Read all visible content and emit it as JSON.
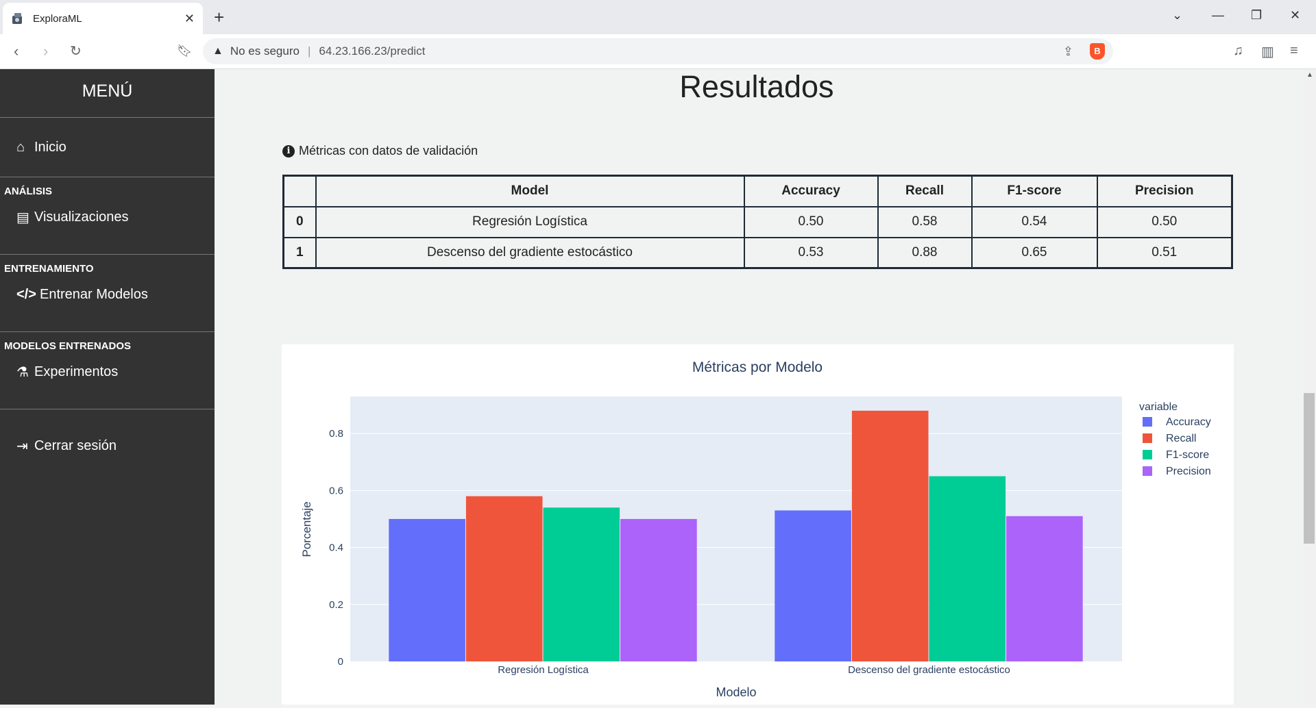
{
  "browser": {
    "tab_title": "ExploraML",
    "not_secure": "No es seguro",
    "url": "64.23.166.23/predict"
  },
  "sidebar": {
    "header": "MENÚ",
    "home": "Inicio",
    "cat_analysis": "ANÁLISIS",
    "visualizations": "Visualizaciones",
    "cat_training": "ENTRENAMIENTO",
    "train_models": "Entrenar Modelos",
    "cat_trained": "MODELOS ENTRENADOS",
    "experiments": "Experimentos",
    "logout": "Cerrar sesión"
  },
  "main": {
    "title": "Resultados",
    "info": "Métricas con datos de validación",
    "table": {
      "headers": [
        "",
        "Model",
        "Accuracy",
        "Recall",
        "F1-score",
        "Precision"
      ],
      "rows": [
        [
          "0",
          "Regresión Logística",
          "0.50",
          "0.58",
          "0.54",
          "0.50"
        ],
        [
          "1",
          "Descenso del gradiente estocástico",
          "0.53",
          "0.88",
          "0.65",
          "0.51"
        ]
      ]
    }
  },
  "chart_data": {
    "type": "bar",
    "title": "Métricas por Modelo",
    "xlabel": "Modelo",
    "ylabel": "Porcentaje",
    "legend_title": "variable",
    "legend_position": "right",
    "categories": [
      "Regresión Logística",
      "Descenso del gradiente estocástico"
    ],
    "series": [
      {
        "name": "Accuracy",
        "values": [
          0.5,
          0.53
        ],
        "color": "#636efa"
      },
      {
        "name": "Recall",
        "values": [
          0.58,
          0.88
        ],
        "color": "#ef553b"
      },
      {
        "name": "F1-score",
        "values": [
          0.54,
          0.65
        ],
        "color": "#00cc96"
      },
      {
        "name": "Precision",
        "values": [
          0.5,
          0.51
        ],
        "color": "#ab63fa"
      }
    ],
    "ylim": [
      0,
      0.93
    ],
    "yticks": [
      0,
      0.2,
      0.4,
      0.6,
      0.8
    ],
    "grid": true
  }
}
